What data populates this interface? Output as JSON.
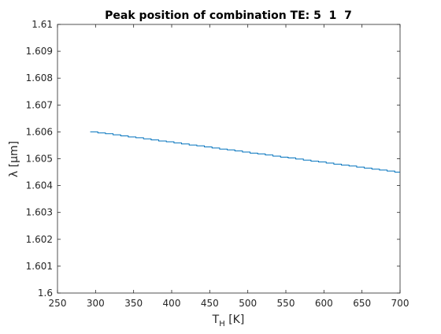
{
  "chart_data": {
    "type": "line",
    "title": "Peak position of combination TE: 5  1  7",
    "xlabel_main": "T",
    "xlabel_sub": "H",
    "xlabel_unit": " [K]",
    "ylabel": "λ [μm]",
    "xlim": [
      250,
      700
    ],
    "ylim": [
      1.6,
      1.61
    ],
    "xticks": [
      250,
      300,
      350,
      400,
      450,
      500,
      550,
      600,
      650,
      700
    ],
    "yticks": [
      1.6,
      1.601,
      1.602,
      1.603,
      1.604,
      1.605,
      1.606,
      1.607,
      1.608,
      1.609,
      1.61
    ],
    "xtick_labels": [
      "250",
      "300",
      "350",
      "400",
      "450",
      "500",
      "550",
      "600",
      "650",
      "700"
    ],
    "ytick_labels": [
      "1.6",
      "1.601",
      "1.602",
      "1.603",
      "1.604",
      "1.605",
      "1.606",
      "1.607",
      "1.608",
      "1.609",
      "1.61"
    ],
    "grid": false,
    "line_color": "#0072BD",
    "line_style": "stairs",
    "series": [
      {
        "x": [
          293,
          303,
          313,
          323,
          333,
          343,
          353,
          363,
          373,
          383,
          393,
          403,
          413,
          423,
          433,
          443,
          453,
          463,
          473,
          483,
          493,
          503,
          513,
          523,
          533,
          543,
          553,
          563,
          573,
          583,
          593,
          603,
          613,
          623,
          633,
          643,
          653,
          663,
          673,
          683,
          693
        ],
        "values": [
          1.606,
          1.60596,
          1.60593,
          1.60589,
          1.60585,
          1.60581,
          1.60578,
          1.60574,
          1.6057,
          1.60566,
          1.60563,
          1.60559,
          1.60555,
          1.60551,
          1.60548,
          1.60544,
          1.6054,
          1.60536,
          1.60533,
          1.60529,
          1.60525,
          1.60521,
          1.60518,
          1.60514,
          1.6051,
          1.60506,
          1.60503,
          1.60499,
          1.60495,
          1.60491,
          1.60488,
          1.60484,
          1.6048,
          1.60476,
          1.60473,
          1.60469,
          1.60465,
          1.60461,
          1.60458,
          1.60454,
          1.6045
        ]
      }
    ]
  }
}
